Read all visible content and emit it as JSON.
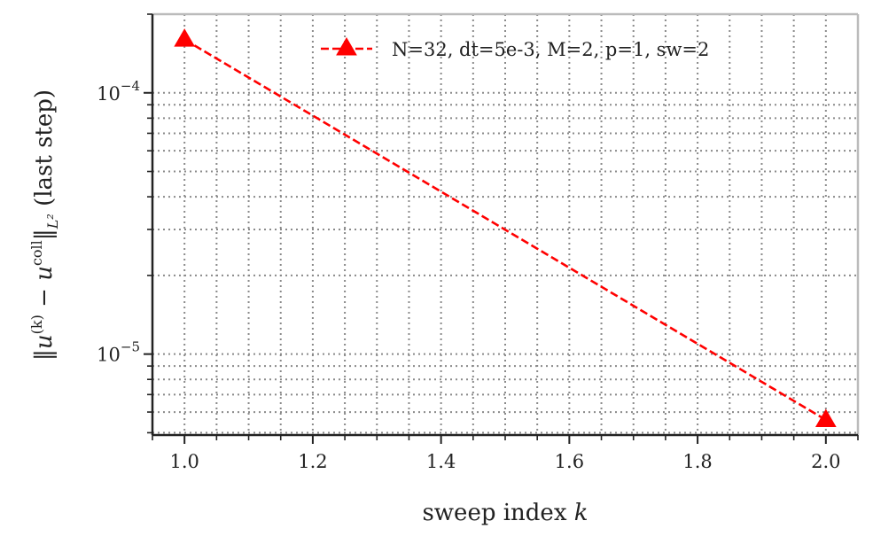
{
  "chart_data": {
    "type": "line",
    "title": "",
    "xlabel": "sweep index k",
    "ylabel": "‖u(k) − ucoll‖L² (last step)",
    "xscale": "linear",
    "yscale": "log",
    "xlim": [
      0.95,
      2.05
    ],
    "ylim": [
      4.9e-06,
      0.0002
    ],
    "x_ticks": [
      1.0,
      1.2,
      1.4,
      1.6,
      1.8,
      2.0
    ],
    "x_tick_labels": [
      "1.0",
      "1.2",
      "1.4",
      "1.6",
      "1.8",
      "2.0"
    ],
    "y_major_ticks": [
      1e-05,
      0.0001
    ],
    "grid": true,
    "legend_position": "top-right",
    "series": [
      {
        "name": "N=32, dt=5e-3, M=2, p=1, sw=2",
        "x": [
          1,
          2
        ],
        "y": [
          0.00016,
          5.6e-06
        ],
        "color": "#ff0000",
        "line_style": "dashed",
        "marker": "triangle-up"
      }
    ]
  }
}
